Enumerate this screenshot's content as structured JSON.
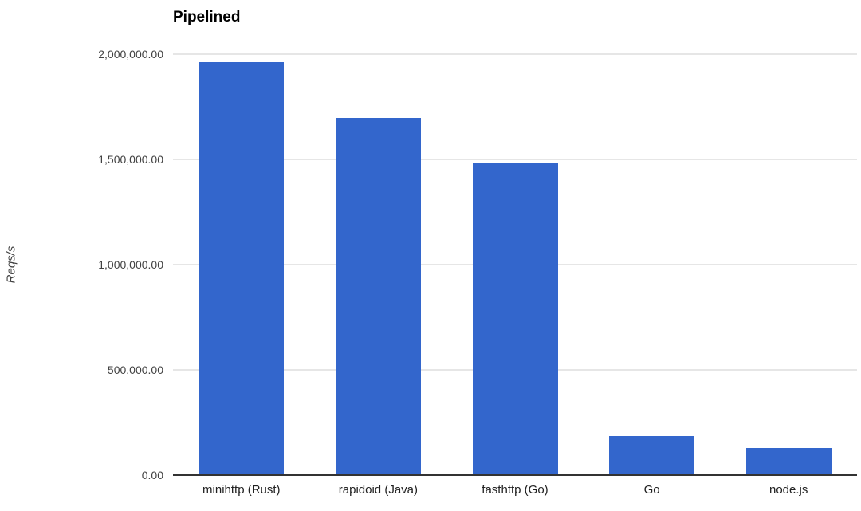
{
  "chart_data": {
    "type": "bar",
    "title": "Pipelined",
    "categories": [
      "minihttp (Rust)",
      "rapidoid (Java)",
      "fasthttp (Go)",
      "Go",
      "node.js"
    ],
    "values": [
      1962000,
      1697000,
      1485000,
      186000,
      129000
    ],
    "xlabel": "",
    "ylabel": "Reqs/s",
    "ylim": [
      0,
      2000000
    ],
    "ytick_step": 500000,
    "ytick_labels": [
      "0.00",
      "500,000.00",
      "1,000,000.00",
      "1,500,000.00",
      "2,000,000.00"
    ],
    "grid": true,
    "legend": "none",
    "colors": {
      "bar": "#3366cc",
      "gridline": "#e6e6e6",
      "axis_line": "#333333",
      "tick_label": "#424242",
      "category_label": "#212121",
      "title": "#000000"
    }
  }
}
